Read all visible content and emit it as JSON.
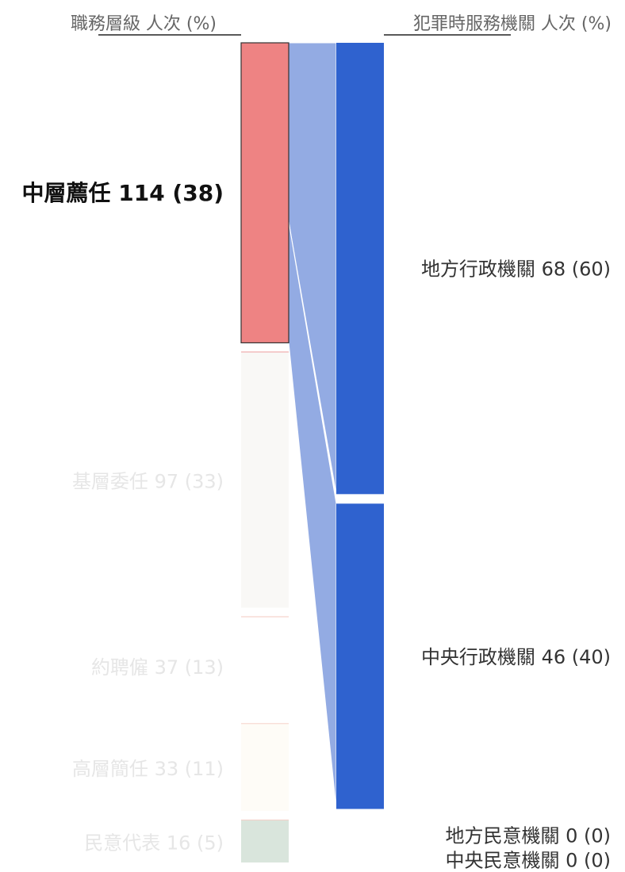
{
  "chart_data": {
    "type": "sankey",
    "left_header": "職務層級 人次 (%)",
    "right_header": "犯罪時服務機關 人次 (%)",
    "highlighted_source": "中層薦任",
    "sources": [
      {
        "name": "中層薦任",
        "value": 114,
        "label": "中層薦任 114 (38)",
        "color": "#ee8383"
      },
      {
        "name": "基層委任",
        "value": 97,
        "label": "基層委任 97 (33)",
        "color": "#f9f8f6"
      },
      {
        "name": "約聘僱",
        "value": 37,
        "label": "約聘僱 37 (13)",
        "color": "#ffffff"
      },
      {
        "name": "高層簡任",
        "value": 33,
        "label": "高層簡任 33 (11)",
        "color": "#fefcf7"
      },
      {
        "name": "民意代表",
        "value": 16,
        "label": "民意代表 16 (5)",
        "color": "#d9e5dc"
      }
    ],
    "targets": [
      {
        "name": "地方行政機關",
        "value": 68,
        "label": "地方行政機關 68 (60)",
        "color": "#2f62cf"
      },
      {
        "name": "中央行政機關",
        "value": 46,
        "label": "中央行政機關 46 (40)",
        "color": "#2f62cf"
      },
      {
        "name": "地方民意機關",
        "value": 0,
        "label": "地方民意機關 0 (0)",
        "color": "#2f62cf"
      },
      {
        "name": "中央民意機關",
        "value": 0,
        "label": "中央民意機關 0 (0)",
        "color": "#2f62cf"
      }
    ],
    "flows": [
      {
        "source": "中層薦任",
        "target": "地方行政機關",
        "value": 68
      },
      {
        "source": "中層薦任",
        "target": "中央行政機關",
        "value": 46
      }
    ],
    "flow_color": "#93abe3"
  }
}
